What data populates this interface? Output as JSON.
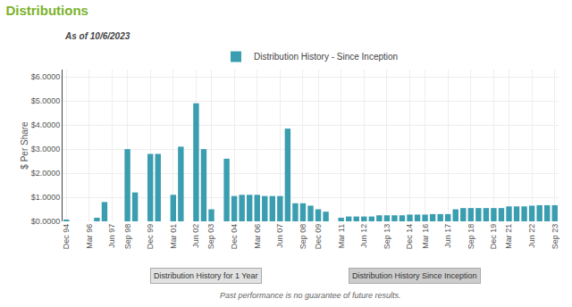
{
  "chart_data": {
    "type": "bar",
    "title": "Distributions",
    "subtitle": "As of 10/6/2023",
    "ylabel": "$ Per Share",
    "annotations": [
      "Distribution History for 1 Year",
      "Distribution History Since Inception",
      "Past performance is no guarantee of future results."
    ],
    "categories": [
      "Dec 94",
      null,
      null,
      "Mar 96",
      null,
      null,
      "Jun 97",
      null,
      "Sep 98",
      null,
      null,
      "Dec 99",
      null,
      null,
      "Mar 01",
      null,
      null,
      "Jun 02",
      null,
      "Sep 03",
      null,
      null,
      "Dec 04",
      null,
      null,
      "Mar 06",
      null,
      null,
      "Jun 07",
      null,
      null,
      "Sep 08",
      null,
      "Dec 09",
      null,
      null,
      "Mar 11",
      null,
      null,
      "Jun 12",
      null,
      null,
      "Sep 13",
      null,
      null,
      "Dec 14",
      null,
      "Mar 16",
      null,
      null,
      "Jun 17",
      null,
      null,
      "Sep 18",
      null,
      null,
      "Dec 19",
      null,
      "Mar 21",
      null,
      null,
      "Jun 22",
      null,
      null,
      "Sep 23"
    ],
    "series": [
      {
        "name": "Distribution History - Since Inception",
        "color": "#3a9db0",
        "values": [
          0.05,
          0.0,
          0.0,
          0.0,
          0.15,
          0.8,
          0.0,
          0.0,
          3.0,
          1.2,
          0.0,
          2.8,
          2.8,
          0.0,
          1.1,
          3.1,
          0.0,
          4.9,
          3.0,
          0.5,
          0.0,
          2.6,
          1.05,
          1.1,
          1.1,
          1.1,
          1.05,
          1.05,
          1.05,
          3.85,
          0.75,
          0.75,
          0.65,
          0.5,
          0.4,
          0.0,
          0.15,
          0.2,
          0.2,
          0.2,
          0.2,
          0.25,
          0.25,
          0.25,
          0.25,
          0.28,
          0.28,
          0.28,
          0.3,
          0.3,
          0.3,
          0.5,
          0.55,
          0.55,
          0.55,
          0.55,
          0.55,
          0.55,
          0.62,
          0.62,
          0.62,
          0.65,
          0.67,
          0.67,
          0.67
        ]
      }
    ],
    "ylim": [
      0,
      6.3
    ],
    "yticks": [
      {
        "value": 0,
        "label": "$0.0000"
      },
      {
        "value": 1,
        "label": "$1.0000"
      },
      {
        "value": 2,
        "label": "$2.0000"
      },
      {
        "value": 3,
        "label": "$3.0000"
      },
      {
        "value": 4,
        "label": "$4.0000"
      },
      {
        "value": 5,
        "label": "$5.0000"
      },
      {
        "value": 6,
        "label": "$6.0000"
      }
    ],
    "grid": true,
    "legend": "top"
  }
}
